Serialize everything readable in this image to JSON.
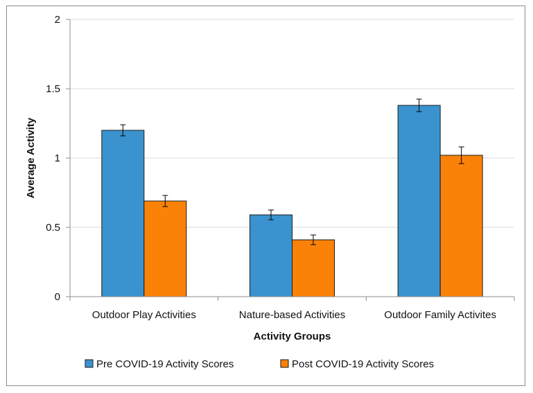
{
  "colors": {
    "pre": "#3a93cf",
    "post": "#fb8208",
    "grid": "#d9d9d9",
    "axis": "#8c8c8c",
    "bar_stroke": "#1a1a1a"
  },
  "chart_data": {
    "type": "bar",
    "title": "",
    "xlabel": "Activity Groups",
    "ylabel": "Average Activity",
    "ylim": [
      0,
      2
    ],
    "yticks": [
      0,
      0.5,
      1,
      1.5,
      2
    ],
    "ytick_labels": [
      "0",
      "0.5",
      "1",
      "1.5",
      "2"
    ],
    "grid": true,
    "legend_position": "bottom",
    "categories": [
      "Outdoor Play Activities",
      "Nature-based Activities",
      "Outdoor Family Activites"
    ],
    "series": [
      {
        "name": "Pre COVID-19 Activity Scores",
        "color": "#3a93cf",
        "values": [
          1.2,
          0.59,
          1.38
        ],
        "errors": [
          0.04,
          0.035,
          0.045
        ]
      },
      {
        "name": "Post COVID-19 Activity Scores",
        "color": "#fb8208",
        "values": [
          0.69,
          0.41,
          1.02
        ],
        "errors": [
          0.04,
          0.035,
          0.06
        ]
      }
    ]
  }
}
